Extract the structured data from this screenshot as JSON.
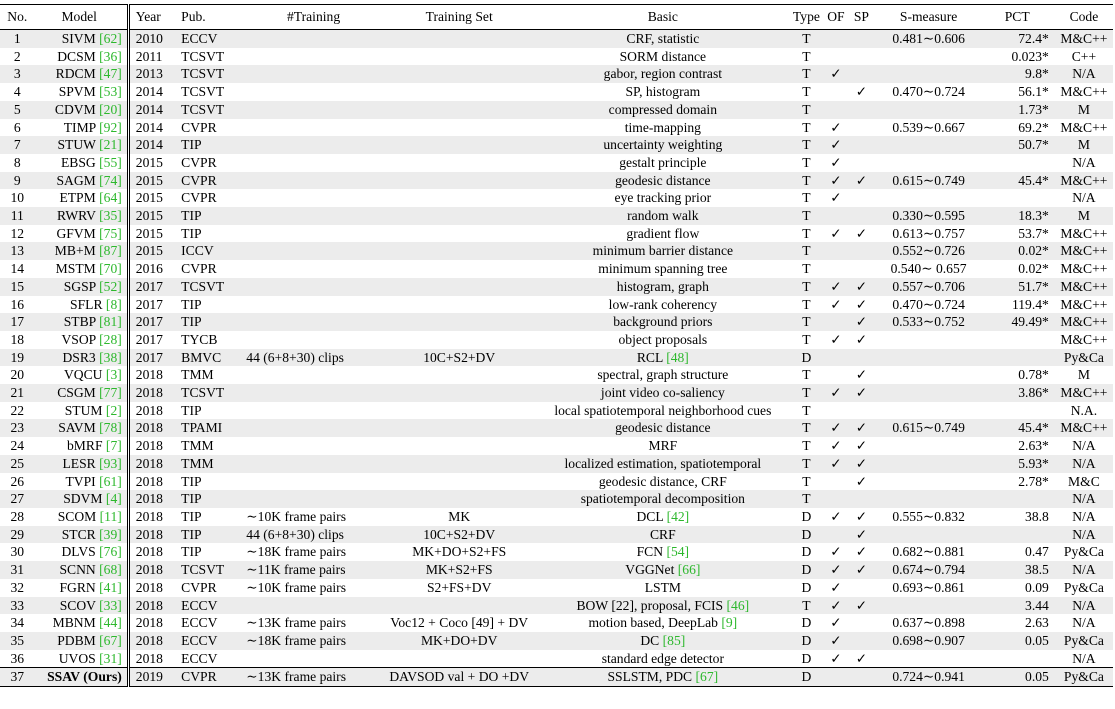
{
  "header": {
    "no": "No.",
    "model": "Model",
    "year": "Year",
    "pub": "Pub.",
    "training": "#Training",
    "training_set": "Training Set",
    "basic": "Basic",
    "type": "Type",
    "of": "OF",
    "sp": "SP",
    "smeasure": "S-measure",
    "pct": "PCT",
    "code": "Code"
  },
  "rows": [
    {
      "no": "1",
      "model": "SIVM",
      "ref": "[62]",
      "year": "2010",
      "pub": "ECCV",
      "training": "",
      "set": "",
      "basic": "CRF, statistic",
      "basic_ref": "",
      "type": "T",
      "of": "",
      "sp": "",
      "sm": "0.481∼0.606",
      "pct": "72.4*",
      "code": "M&C++"
    },
    {
      "no": "2",
      "model": "DCSM",
      "ref": "[36]",
      "year": "2011",
      "pub": "TCSVT",
      "training": "",
      "set": "",
      "basic": "SORM distance",
      "basic_ref": "",
      "type": "T",
      "of": "",
      "sp": "",
      "sm": "",
      "pct": "0.023*",
      "code": "C++"
    },
    {
      "no": "3",
      "model": "RDCM",
      "ref": "[47]",
      "year": "2013",
      "pub": "TCSVT",
      "training": "",
      "set": "",
      "basic": "gabor, region contrast",
      "basic_ref": "",
      "type": "T",
      "of": "✓",
      "sp": "",
      "sm": "",
      "pct": "9.8*",
      "code": "N/A"
    },
    {
      "no": "4",
      "model": "SPVM",
      "ref": "[53]",
      "year": "2014",
      "pub": "TCSVT",
      "training": "",
      "set": "",
      "basic": "SP, histogram",
      "basic_ref": "",
      "type": "T",
      "of": "",
      "sp": "✓",
      "sm": "0.470∼0.724",
      "pct": "56.1*",
      "code": "M&C++"
    },
    {
      "no": "5",
      "model": "CDVM",
      "ref": "[20]",
      "year": "2014",
      "pub": "TCSVT",
      "training": "",
      "set": "",
      "basic": "compressed domain",
      "basic_ref": "",
      "type": "T",
      "of": "",
      "sp": "",
      "sm": "",
      "pct": "1.73*",
      "code": "M"
    },
    {
      "no": "6",
      "model": "TIMP",
      "ref": "[92]",
      "year": "2014",
      "pub": "CVPR",
      "training": "",
      "set": "",
      "basic": "time-mapping",
      "basic_ref": "",
      "type": "T",
      "of": "✓",
      "sp": "",
      "sm": "0.539∼0.667",
      "pct": "69.2*",
      "code": "M&C++"
    },
    {
      "no": "7",
      "model": "STUW",
      "ref": "[21]",
      "year": "2014",
      "pub": "TIP",
      "training": "",
      "set": "",
      "basic": "uncertainty weighting",
      "basic_ref": "",
      "type": "T",
      "of": "✓",
      "sp": "",
      "sm": "",
      "pct": "50.7*",
      "code": "M"
    },
    {
      "no": "8",
      "model": "EBSG",
      "ref": "[55]",
      "year": "2015",
      "pub": "CVPR",
      "training": "",
      "set": "",
      "basic": "gestalt principle",
      "basic_ref": "",
      "type": "T",
      "of": "✓",
      "sp": "",
      "sm": "",
      "pct": "",
      "code": "N/A"
    },
    {
      "no": "9",
      "model": "SAGM",
      "ref": "[74]",
      "year": "2015",
      "pub": "CVPR",
      "training": "",
      "set": "",
      "basic": "geodesic distance",
      "basic_ref": "",
      "type": "T",
      "of": "✓",
      "sp": "✓",
      "sm": "0.615∼0.749",
      "pct": "45.4*",
      "code": "M&C++"
    },
    {
      "no": "10",
      "model": "ETPM",
      "ref": "[64]",
      "year": "2015",
      "pub": "CVPR",
      "training": "",
      "set": "",
      "basic": "eye tracking prior",
      "basic_ref": "",
      "type": "T",
      "of": "✓",
      "sp": "",
      "sm": "",
      "pct": "",
      "code": "N/A"
    },
    {
      "no": "11",
      "model": "RWRV",
      "ref": "[35]",
      "year": "2015",
      "pub": "TIP",
      "training": "",
      "set": "",
      "basic": "random walk",
      "basic_ref": "",
      "type": "T",
      "of": "",
      "sp": "",
      "sm": "0.330∼0.595",
      "pct": "18.3*",
      "code": "M"
    },
    {
      "no": "12",
      "model": "GFVM",
      "ref": "[75]",
      "year": "2015",
      "pub": "TIP",
      "training": "",
      "set": "",
      "basic": "gradient flow",
      "basic_ref": "",
      "type": "T",
      "of": "✓",
      "sp": "✓",
      "sm": "0.613∼0.757",
      "pct": "53.7*",
      "code": "M&C++"
    },
    {
      "no": "13",
      "model": "MB+M",
      "ref": "[87]",
      "year": "2015",
      "pub": "ICCV",
      "training": "",
      "set": "",
      "basic": "minimum barrier distance",
      "basic_ref": "",
      "type": "T",
      "of": "",
      "sp": "",
      "sm": "0.552∼0.726",
      "pct": "0.02*",
      "code": "M&C++"
    },
    {
      "no": "14",
      "model": "MSTM",
      "ref": "[70]",
      "year": "2016",
      "pub": "CVPR",
      "training": "",
      "set": "",
      "basic": "minimum spanning tree",
      "basic_ref": "",
      "type": "T",
      "of": "",
      "sp": "",
      "sm": "0.540∼ 0.657",
      "pct": "0.02*",
      "code": "M&C++"
    },
    {
      "no": "15",
      "model": "SGSP",
      "ref": "[52]",
      "year": "2017",
      "pub": "TCSVT",
      "training": "",
      "set": "",
      "basic": "histogram, graph",
      "basic_ref": "",
      "type": "T",
      "of": "✓",
      "sp": "✓",
      "sm": "0.557∼0.706",
      "pct": "51.7*",
      "code": "M&C++"
    },
    {
      "no": "16",
      "model": "SFLR",
      "ref": "[8]",
      "year": "2017",
      "pub": "TIP",
      "training": "",
      "set": "",
      "basic": "low-rank coherency",
      "basic_ref": "",
      "type": "T",
      "of": "✓",
      "sp": "✓",
      "sm": "0.470∼0.724",
      "pct": "119.4*",
      "code": "M&C++"
    },
    {
      "no": "17",
      "model": "STBP",
      "ref": "[81]",
      "year": "2017",
      "pub": "TIP",
      "training": "",
      "set": "",
      "basic": "background priors",
      "basic_ref": "",
      "type": "T",
      "of": "",
      "sp": "✓",
      "sm": "0.533∼0.752",
      "pct": "49.49*",
      "code": "M&C++"
    },
    {
      "no": "18",
      "model": "VSOP",
      "ref": "[28]",
      "year": "2017",
      "pub": "TYCB",
      "training": "",
      "set": "",
      "basic": "object proposals",
      "basic_ref": "",
      "type": "T",
      "of": "✓",
      "sp": "✓",
      "sm": "",
      "pct": "",
      "code": "M&C++"
    },
    {
      "no": "19",
      "model": "DSR3",
      "ref": "[38]",
      "year": "2017",
      "pub": "BMVC",
      "training": "44 (6+8+30) clips",
      "set": "10C+S2+DV",
      "basic": "RCL",
      "basic_ref": "[48]",
      "type": "D",
      "of": "",
      "sp": "",
      "sm": "",
      "pct": "",
      "code": "Py&Ca"
    },
    {
      "no": "20",
      "model": "VQCU",
      "ref": "[3]",
      "year": "2018",
      "pub": "TMM",
      "training": "",
      "set": "",
      "basic": "spectral, graph structure",
      "basic_ref": "",
      "type": "T",
      "of": "",
      "sp": "✓",
      "sm": "",
      "pct": "0.78*",
      "code": "M"
    },
    {
      "no": "21",
      "model": "CSGM",
      "ref": "[77]",
      "year": "2018",
      "pub": "TCSVT",
      "training": "",
      "set": "",
      "basic": "joint video co-saliency",
      "basic_ref": "",
      "type": "T",
      "of": "✓",
      "sp": "✓",
      "sm": "",
      "pct": "3.86*",
      "code": "M&C++"
    },
    {
      "no": "22",
      "model": "STUM",
      "ref": "[2]",
      "year": "2018",
      "pub": "TIP",
      "training": "",
      "set": "",
      "basic": "local spatiotemporal neighborhood cues",
      "basic_ref": "",
      "type": "T",
      "of": "",
      "sp": "",
      "sm": "",
      "pct": "",
      "code": "N.A."
    },
    {
      "no": "23",
      "model": "SAVM",
      "ref": "[78]",
      "year": "2018",
      "pub": "TPAMI",
      "training": "",
      "set": "",
      "basic": "geodesic distance",
      "basic_ref": "",
      "type": "T",
      "of": "✓",
      "sp": "✓",
      "sm": "0.615∼0.749",
      "pct": "45.4*",
      "code": "M&C++"
    },
    {
      "no": "24",
      "model": "bMRF",
      "ref": "[7]",
      "year": "2018",
      "pub": "TMM",
      "training": "",
      "set": "",
      "basic": "MRF",
      "basic_ref": "",
      "type": "T",
      "of": "✓",
      "sp": "✓",
      "sm": "",
      "pct": "2.63*",
      "code": "N/A"
    },
    {
      "no": "25",
      "model": "LESR",
      "ref": "[93]",
      "year": "2018",
      "pub": "TMM",
      "training": "",
      "set": "",
      "basic": "localized estimation, spatiotemporal",
      "basic_ref": "",
      "type": "T",
      "of": "✓",
      "sp": "✓",
      "sm": "",
      "pct": "5.93*",
      "code": "N/A"
    },
    {
      "no": "26",
      "model": "TVPI",
      "ref": "[61]",
      "year": "2018",
      "pub": "TIP",
      "training": "",
      "set": "",
      "basic": "geodesic distance, CRF",
      "basic_ref": "",
      "type": "T",
      "of": "",
      "sp": "✓",
      "sm": "",
      "pct": "2.78*",
      "code": "M&C"
    },
    {
      "no": "27",
      "model": "SDVM",
      "ref": "[4]",
      "year": "2018",
      "pub": "TIP",
      "training": "",
      "set": "",
      "basic": "spatiotemporal decomposition",
      "basic_ref": "",
      "type": "T",
      "of": "",
      "sp": "",
      "sm": "",
      "pct": "",
      "code": "N/A"
    },
    {
      "no": "28",
      "model": "SCOM",
      "ref": "[11]",
      "year": "2018",
      "pub": "TIP",
      "training": "∼10K frame pairs",
      "set": "MK",
      "basic": "DCL",
      "basic_ref": "[42]",
      "type": "D",
      "of": "✓",
      "sp": "✓",
      "sm": "0.555∼0.832",
      "pct": "38.8",
      "code": "N/A"
    },
    {
      "no": "29",
      "model": "STCR",
      "ref": "[39]",
      "year": "2018",
      "pub": "TIP",
      "training": "44 (6+8+30) clips",
      "set": "10C+S2+DV",
      "basic": "CRF",
      "basic_ref": "",
      "type": "D",
      "of": "",
      "sp": "✓",
      "sm": "",
      "pct": "",
      "code": "N/A"
    },
    {
      "no": "30",
      "model": "DLVS",
      "ref": "[76]",
      "year": "2018",
      "pub": "TIP",
      "training": "∼18K frame pairs",
      "set": "MK+DO+S2+FS",
      "basic": "FCN",
      "basic_ref": "[54]",
      "type": "D",
      "of": "✓",
      "sp": "✓",
      "sm": "0.682∼0.881",
      "pct": "0.47",
      "code": "Py&Ca"
    },
    {
      "no": "31",
      "model": "SCNN",
      "ref": "[68]",
      "year": "2018",
      "pub": "TCSVT",
      "training": "∼11K frame pairs",
      "set": "MK+S2+FS",
      "basic": "VGGNet",
      "basic_ref": "[66]",
      "type": "D",
      "of": "✓",
      "sp": "✓",
      "sm": "0.674∼0.794",
      "pct": "38.5",
      "code": "N/A"
    },
    {
      "no": "32",
      "model": "FGRN",
      "ref": "[41]",
      "year": "2018",
      "pub": "CVPR",
      "training": "∼10K frame pairs",
      "set": "S2+FS+DV",
      "basic": "LSTM",
      "basic_ref": "",
      "type": "D",
      "of": "✓",
      "sp": "",
      "sm": "0.693∼0.861",
      "pct": "0.09",
      "code": "Py&Ca"
    },
    {
      "no": "33",
      "model": "SCOV",
      "ref": "[33]",
      "year": "2018",
      "pub": "ECCV",
      "training": "",
      "set": "",
      "basic": "BOW [22], proposal, FCIS",
      "basic_ref": "[46]",
      "type": "T",
      "of": "✓",
      "sp": "✓",
      "sm": "",
      "pct": "3.44",
      "code": "N/A"
    },
    {
      "no": "34",
      "model": "MBNM",
      "ref": "[44]",
      "year": "2018",
      "pub": "ECCV",
      "training": "∼13K frame pairs",
      "set": "Voc12 + Coco [49] + DV",
      "basic": "motion based, DeepLab",
      "basic_ref": "[9]",
      "type": "D",
      "of": "✓",
      "sp": "",
      "sm": "0.637∼0.898",
      "pct": "2.63",
      "code": "N/A"
    },
    {
      "no": "35",
      "model": "PDBM",
      "ref": "[67]",
      "year": "2018",
      "pub": "ECCV",
      "training": "∼18K frame pairs",
      "set": "MK+DO+DV",
      "basic": "DC",
      "basic_ref": "[85]",
      "type": "D",
      "of": "✓",
      "sp": "",
      "sm": "0.698∼0.907",
      "pct": "0.05",
      "code": "Py&Ca"
    },
    {
      "no": "36",
      "model": "UVOS",
      "ref": "[31]",
      "year": "2018",
      "pub": "ECCV",
      "training": "",
      "set": "",
      "basic": "standard edge detector",
      "basic_ref": "",
      "type": "D",
      "of": "✓",
      "sp": "✓",
      "sm": "",
      "pct": "",
      "code": "N/A"
    },
    {
      "no": "37",
      "model": "SSAV (Ours)",
      "ref": "",
      "year": "2019",
      "pub": "CVPR",
      "training": "∼13K frame pairs",
      "set": "DAVSOD val + DO +DV",
      "basic": "SSLSTM, PDC",
      "basic_ref": "[67]",
      "type": "D",
      "of": "",
      "sp": "",
      "sm": "0.724∼0.941",
      "pct": "0.05",
      "code": "Py&Ca"
    }
  ],
  "colors": {
    "ref": "#2db82d",
    "stripe": "#ececec"
  }
}
